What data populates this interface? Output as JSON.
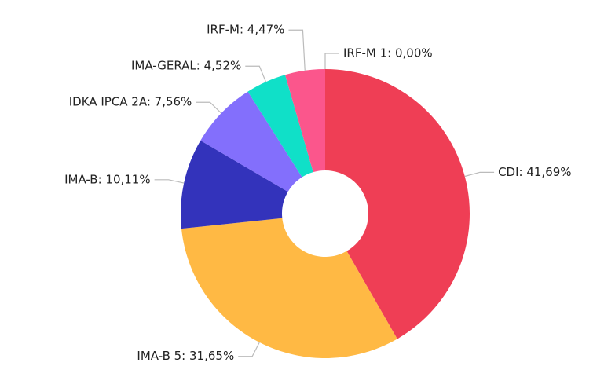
{
  "chart_data": {
    "type": "pie",
    "value_labels": [
      "CDI: 41,69%",
      "IMA-B 5: 31,65%",
      "IMA-B: 10,11%",
      "IDKA IPCA 2A: 7,56%",
      "IMA-GERAL: 4,52%",
      "IRF-M: 4,47%",
      "IRF-M 1: 0,00%"
    ],
    "values": [
      41.69,
      31.65,
      10.11,
      7.56,
      4.52,
      4.47,
      0.0
    ],
    "colors": [
      "#ef3e55",
      "#ffb944",
      "#3333bb",
      "#836ffc",
      "#10e0c8",
      "#fb568c",
      "#f2a03d"
    ],
    "donut": true
  }
}
